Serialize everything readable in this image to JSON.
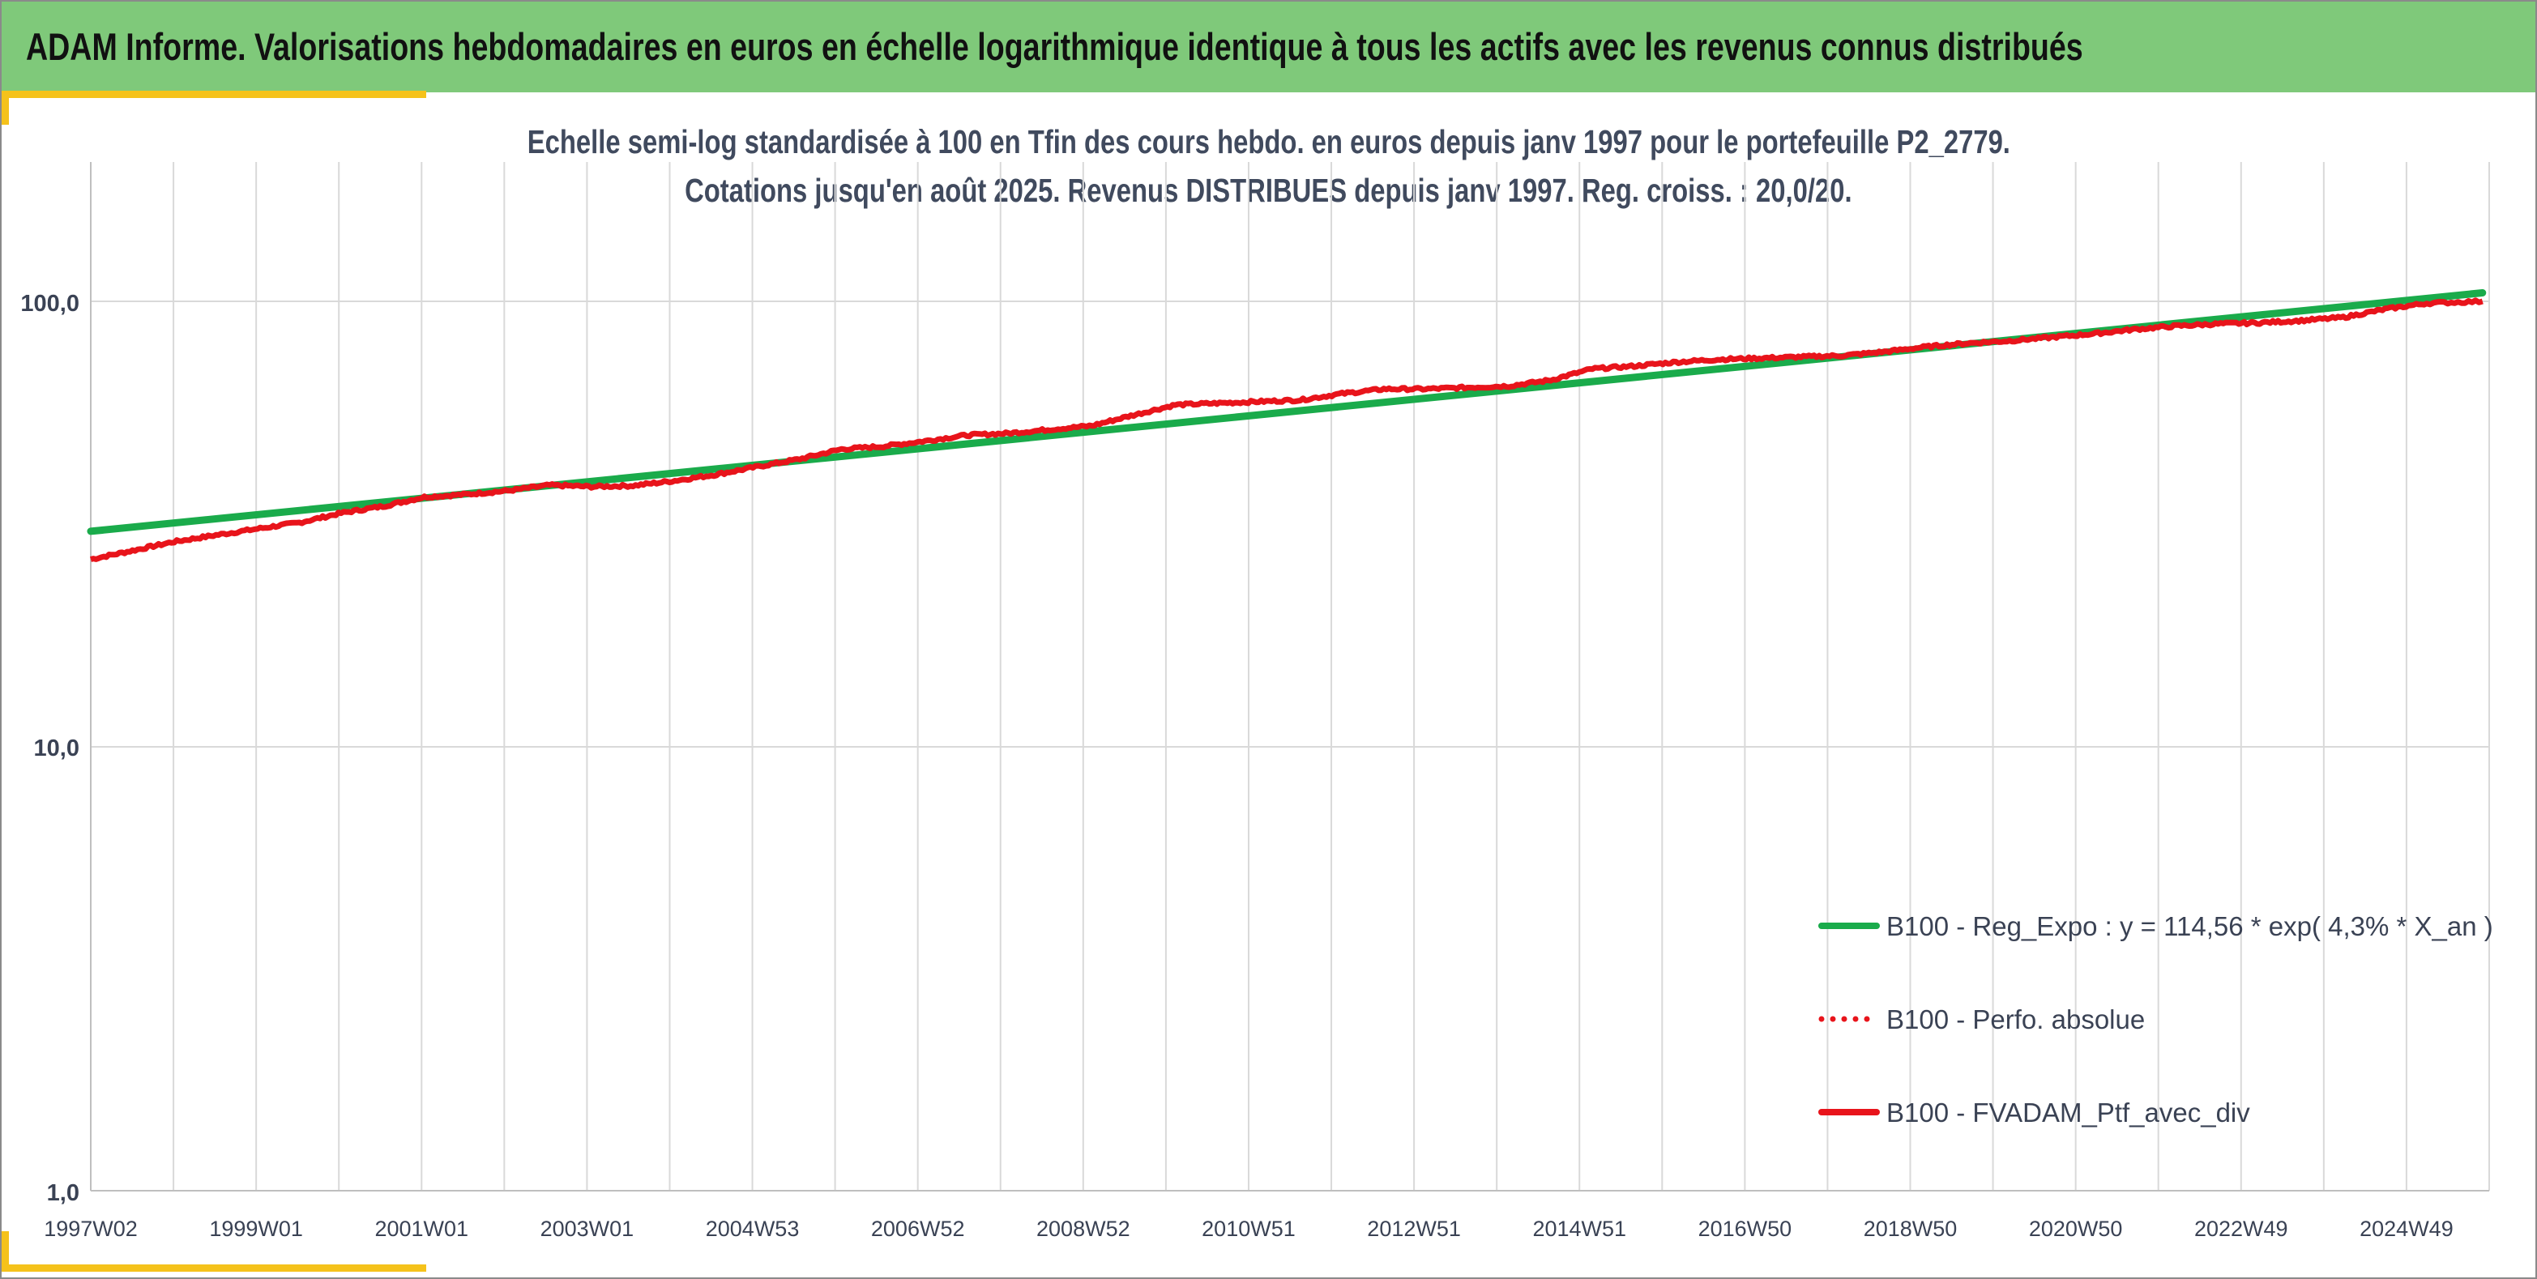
{
  "header": {
    "title": "ADAM Informe. Valorisations hebdomadaires en euros en échelle logarithmique identique à tous les actifs avec les revenus connus distribués"
  },
  "colors": {
    "banner": "#7fc97a",
    "accent": "#f5c21b",
    "regression": "#1aab4b",
    "perf": "#e8141b",
    "portfolio": "#e8141b",
    "grid": "#d9d9d9"
  },
  "chart_data": {
    "type": "line",
    "title_line1": "Echelle semi-log standardisée à 100 en Tfin des cours hebdo. en euros depuis janv 1997 pour le portefeuille P2_2779.",
    "title_line2": "Cotations jusqu'en août 2025. Revenus DISTRIBUES depuis janv 1997. Reg. croiss. : 20,0/20.",
    "y_scale": "log",
    "ylim": [
      1,
      200
    ],
    "y_ticks": [
      "1,0",
      "10,0",
      "100,0"
    ],
    "y_tick_values": [
      1,
      10,
      100
    ],
    "x_range": [
      "1997W02",
      "2025W35"
    ],
    "x_ticks": [
      "1997W02",
      "1999W01",
      "2001W01",
      "2003W01",
      "2004W53",
      "2006W52",
      "2008W52",
      "2010W51",
      "2012W51",
      "2014W51",
      "2016W50",
      "2018W50",
      "2020W50",
      "2022W49",
      "2024W49"
    ],
    "grid": "vertical",
    "legend_position": "bottom-right",
    "legend": [
      {
        "label": "B100 - Reg_Expo : y = 114,56 * exp( 4,3% *  X_an )",
        "color": "#1aab4b",
        "style": "solid"
      },
      {
        "label": "B100 - Perfo. absolue",
        "color": "#e8141b",
        "style": "dotted"
      },
      {
        "label": "B100 - FVADAM_Ptf_avec_div",
        "color": "#e8141b",
        "style": "solid"
      }
    ],
    "series": [
      {
        "name": "B100 - Reg_Expo : y = 114,56 * exp( 4,3% *  X_an )",
        "x": [
          1997.0,
          2025.67
        ],
        "values": [
          30.4,
          104.5
        ]
      },
      {
        "name": "B100 - FVADAM_Ptf_avec_div",
        "x": [
          1997.0,
          1997.5,
          1998.0,
          1998.5,
          1999.0,
          1999.5,
          2000.0,
          2000.5,
          2001.0,
          2001.5,
          2002.0,
          2002.5,
          2003.0,
          2003.5,
          2004.0,
          2004.5,
          2005.0,
          2005.5,
          2006.0,
          2006.5,
          2007.0,
          2007.5,
          2008.0,
          2008.5,
          2009.0,
          2009.5,
          2010.0,
          2010.5,
          2011.0,
          2011.5,
          2012.0,
          2012.5,
          2013.0,
          2013.5,
          2014.0,
          2014.5,
          2015.0,
          2015.5,
          2016.0,
          2016.5,
          2017.0,
          2017.5,
          2018.0,
          2018.5,
          2019.0,
          2019.5,
          2020.0,
          2020.5,
          2021.0,
          2021.5,
          2022.0,
          2022.5,
          2023.0,
          2023.5,
          2024.0,
          2024.5,
          2025.0,
          2025.67
        ],
        "values": [
          26.3,
          27.5,
          28.8,
          29.8,
          30.8,
          31.8,
          33.4,
          34.6,
          36.3,
          36.8,
          37.5,
          38.6,
          38.3,
          38.5,
          39.5,
          40.8,
          42.5,
          44.2,
          46.5,
          47.2,
          48.5,
          50.0,
          50.5,
          51.5,
          52.5,
          55.5,
          58.5,
          59.0,
          59.5,
          60.0,
          62.0,
          63.5,
          63.5,
          64.0,
          64.5,
          66.5,
          70.5,
          71.5,
          73.0,
          74.0,
          74.5,
          75.0,
          75.5,
          77.0,
          79.0,
          80.5,
          81.5,
          83.0,
          84.5,
          86.5,
          88.0,
          89.0,
          89.5,
          90.5,
          92.0,
          96.0,
          99.0,
          100.0
        ]
      }
    ]
  }
}
